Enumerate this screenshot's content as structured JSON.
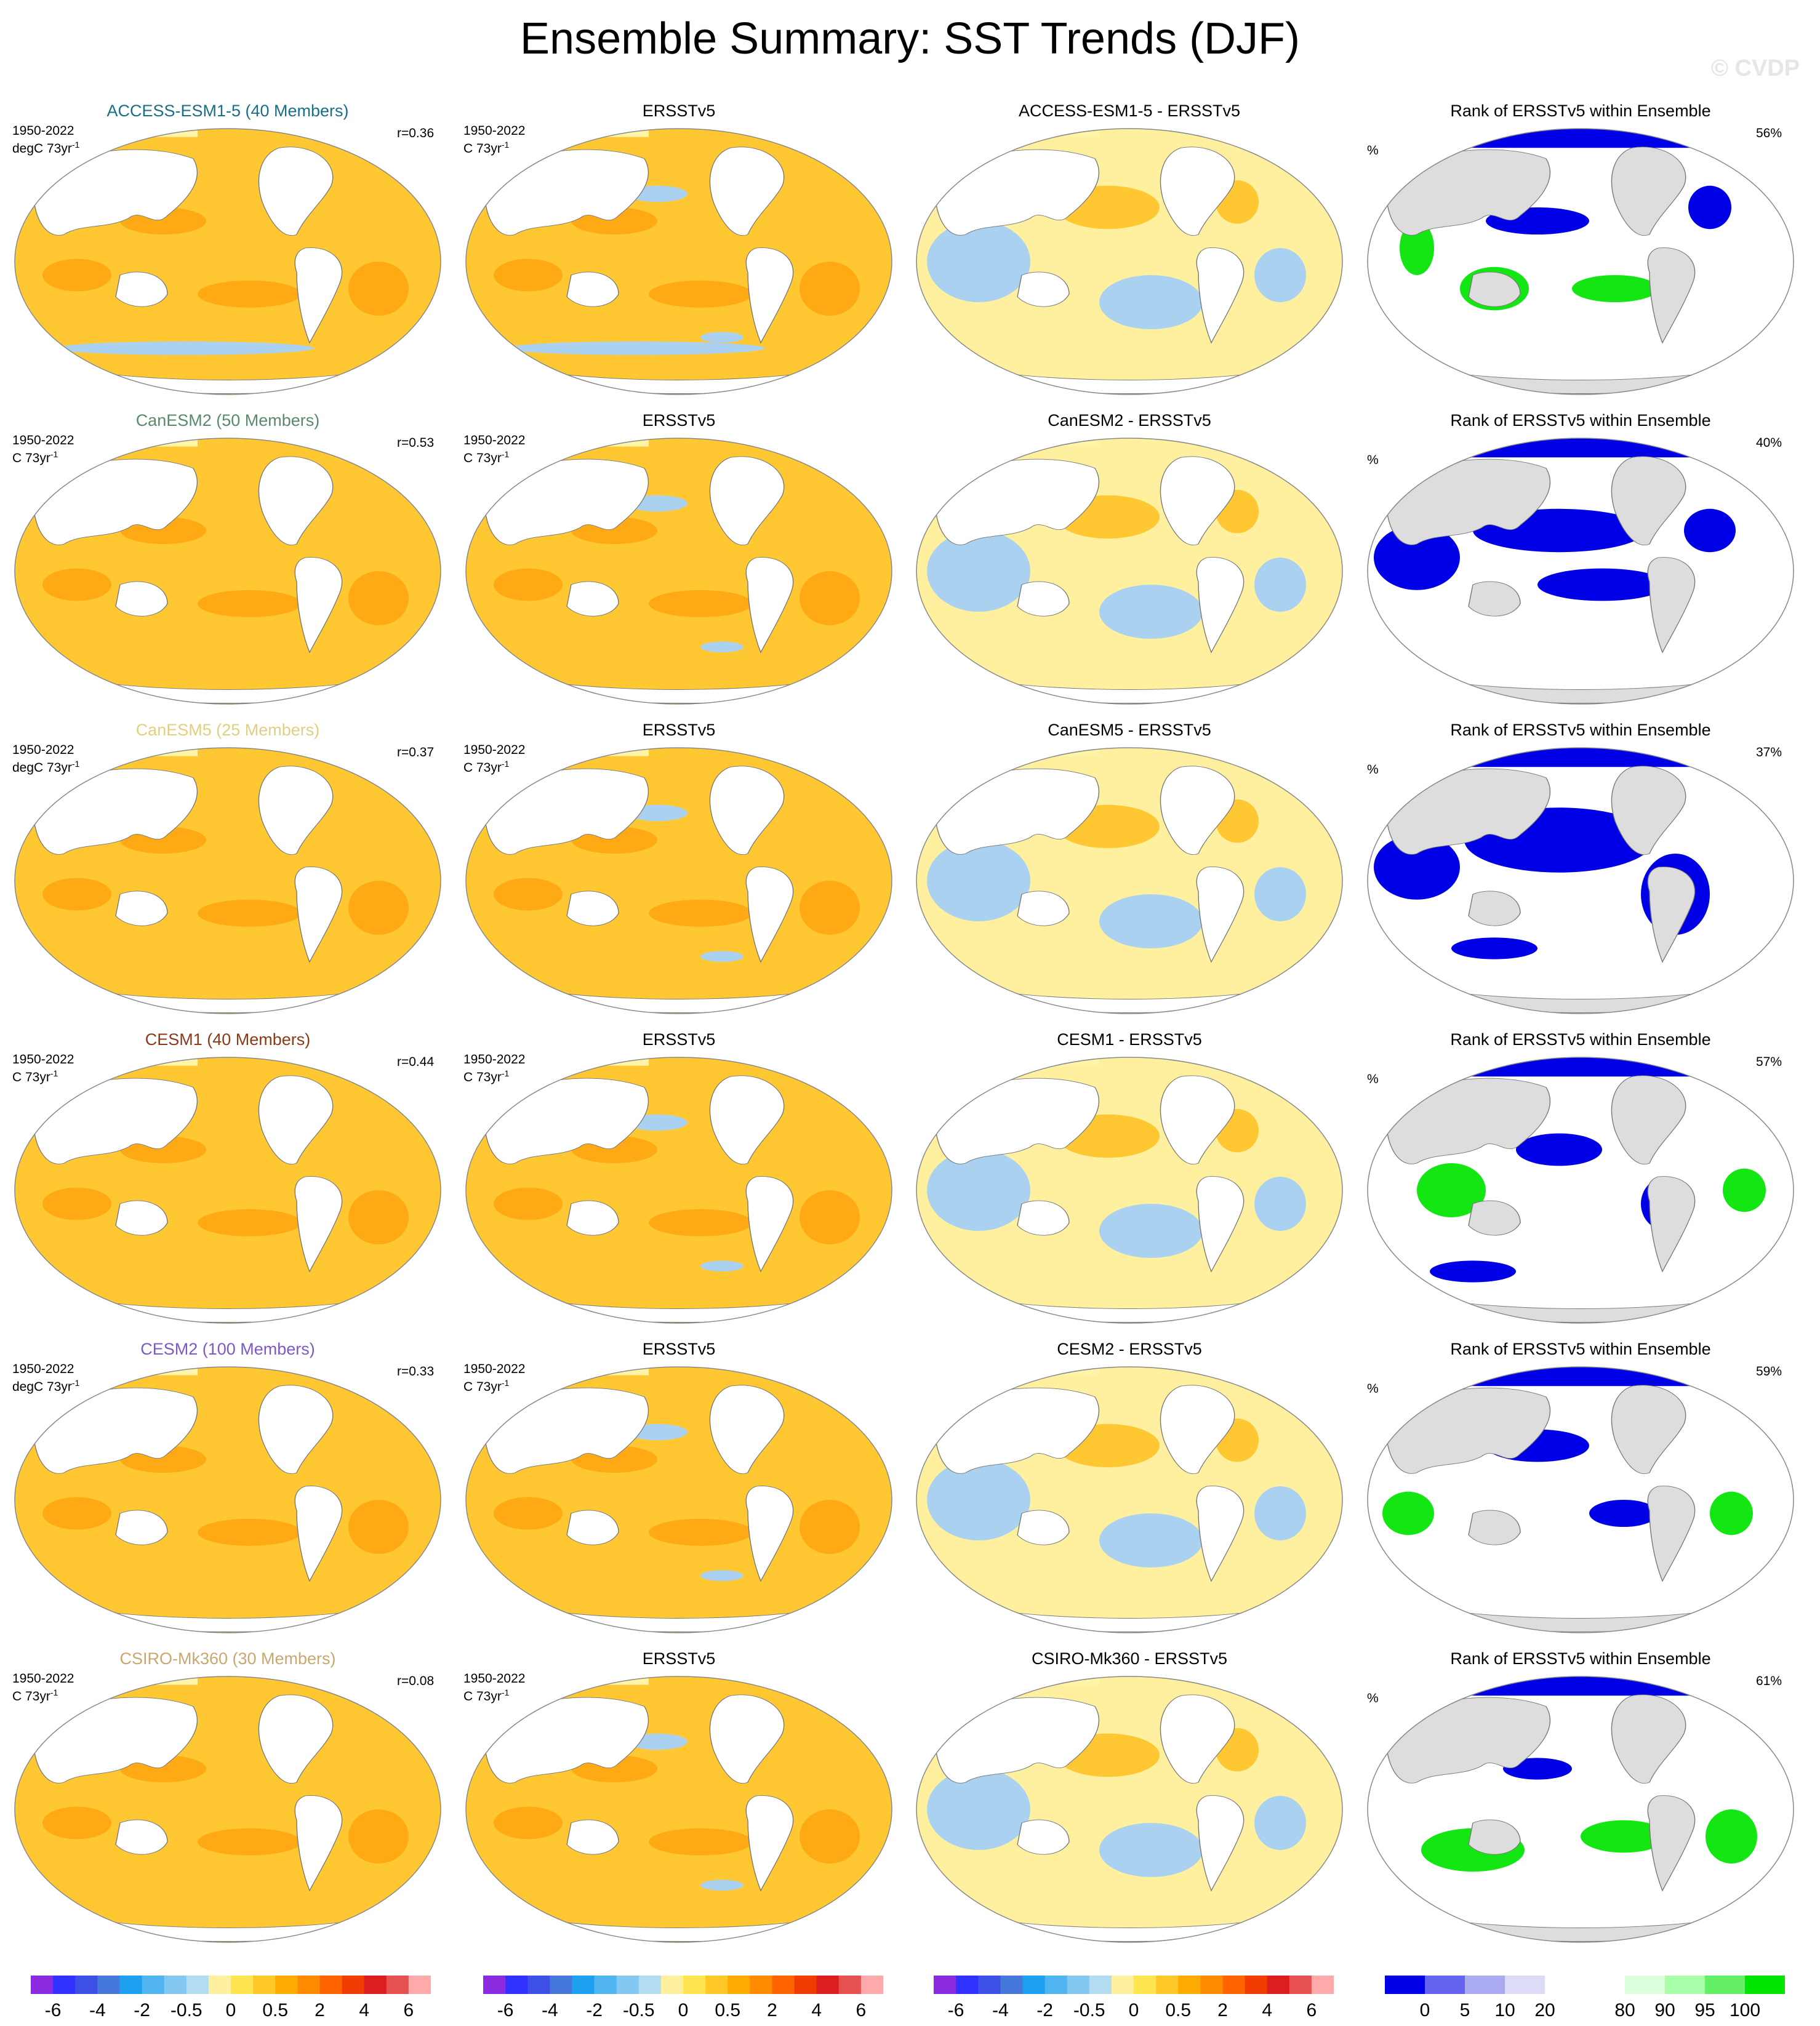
{
  "title": "Ensemble Summary: SST Trends (DJF)",
  "watermark": "© CVDP",
  "rows": [
    {
      "model": "ACCESS-ESM1-5 (40 Members)",
      "model_color": "#1a6e8a",
      "period": "1950-2022",
      "units": "degC 73yr",
      "units_sup": "-1",
      "r": "r=0.36",
      "obs_title": "ERSSTv5",
      "obs_units": "C 73yr",
      "diff_title": "ACCESS-ESM1-5 - ERSSTv5",
      "rank_title": "Rank of ERSSTv5 within Ensemble",
      "rank_pct": "56%",
      "pct_label": "%"
    },
    {
      "model": "CanESM2 (50 Members)",
      "model_color": "#5a8a6a",
      "period": "1950-2022",
      "units": "C 73yr",
      "units_sup": "-1",
      "r": "r=0.53",
      "obs_title": "ERSSTv5",
      "obs_units": "C 73yr",
      "diff_title": "CanESM2 - ERSSTv5",
      "rank_title": "Rank of ERSSTv5 within Ensemble",
      "rank_pct": "40%",
      "pct_label": "%"
    },
    {
      "model": "CanESM5 (25 Members)",
      "model_color": "#e0d080",
      "period": "1950-2022",
      "units": "degC 73yr",
      "units_sup": "-1",
      "r": "r=0.37",
      "obs_title": "ERSSTv5",
      "obs_units": "C 73yr",
      "diff_title": "CanESM5 - ERSSTv5",
      "rank_title": "Rank of ERSSTv5 within Ensemble",
      "rank_pct": "37%",
      "pct_label": "%"
    },
    {
      "model": "CESM1 (40 Members)",
      "model_color": "#8a3a1a",
      "period": "1950-2022",
      "units": "C 73yr",
      "units_sup": "-1",
      "r": "r=0.44",
      "obs_title": "ERSSTv5",
      "obs_units": "C 73yr",
      "diff_title": "CESM1 - ERSSTv5",
      "rank_title": "Rank of ERSSTv5 within Ensemble",
      "rank_pct": "57%",
      "pct_label": "%"
    },
    {
      "model": "CESM2 (100 Members)",
      "model_color": "#7a5ac8",
      "period": "1950-2022",
      "units": "degC 73yr",
      "units_sup": "-1",
      "r": "r=0.33",
      "obs_title": "ERSSTv5",
      "obs_units": "C 73yr",
      "diff_title": "CESM2 - ERSSTv5",
      "rank_title": "Rank of ERSSTv5 within Ensemble",
      "rank_pct": "59%",
      "pct_label": "%"
    },
    {
      "model": "CSIRO-Mk360 (30 Members)",
      "model_color": "#c8a870",
      "period": "1950-2022",
      "units": "C 73yr",
      "units_sup": "-1",
      "r": "r=0.08",
      "obs_title": "ERSSTv5",
      "obs_units": "C 73yr",
      "diff_title": "CSIRO-Mk360 - ERSSTv5",
      "rank_title": "Rank of ERSSTv5 within Ensemble",
      "rank_pct": "61%",
      "pct_label": "%"
    }
  ],
  "trend_colorbar": {
    "colors": [
      "#8a2be2",
      "#3030ff",
      "#3c50e6",
      "#4678dc",
      "#1ea0f0",
      "#50b4f0",
      "#82c8f0",
      "#b4dcf0",
      "#fff0a0",
      "#ffe650",
      "#ffc828",
      "#ffaa00",
      "#ff8c00",
      "#ff6400",
      "#f03c00",
      "#dc1e1e",
      "#e65050",
      "#ffaaaa"
    ],
    "labels": [
      "-6",
      "-4",
      "-2",
      "-0.5",
      "0",
      "0.5",
      "2",
      "4",
      "6"
    ]
  },
  "rank_colorbar": {
    "colors": [
      "#0000e6",
      "#6464f0",
      "#aaaaf0",
      "#dcdcf8",
      "#ffffff",
      "#ffffff",
      "#dcffdc",
      "#aaffaa",
      "#64f064",
      "#00e600"
    ],
    "labels": [
      "0",
      "5",
      "10",
      "20",
      "80",
      "90",
      "95",
      "100"
    ]
  },
  "map_colors": {
    "land": "#ffffff",
    "rank_land": "#dddddd",
    "ocean_main": "#ffc832",
    "ocean_warm": "#ffaa14",
    "cool": "#aad2f0",
    "rank_blue": "#0000e6",
    "rank_green": "#14e614"
  }
}
